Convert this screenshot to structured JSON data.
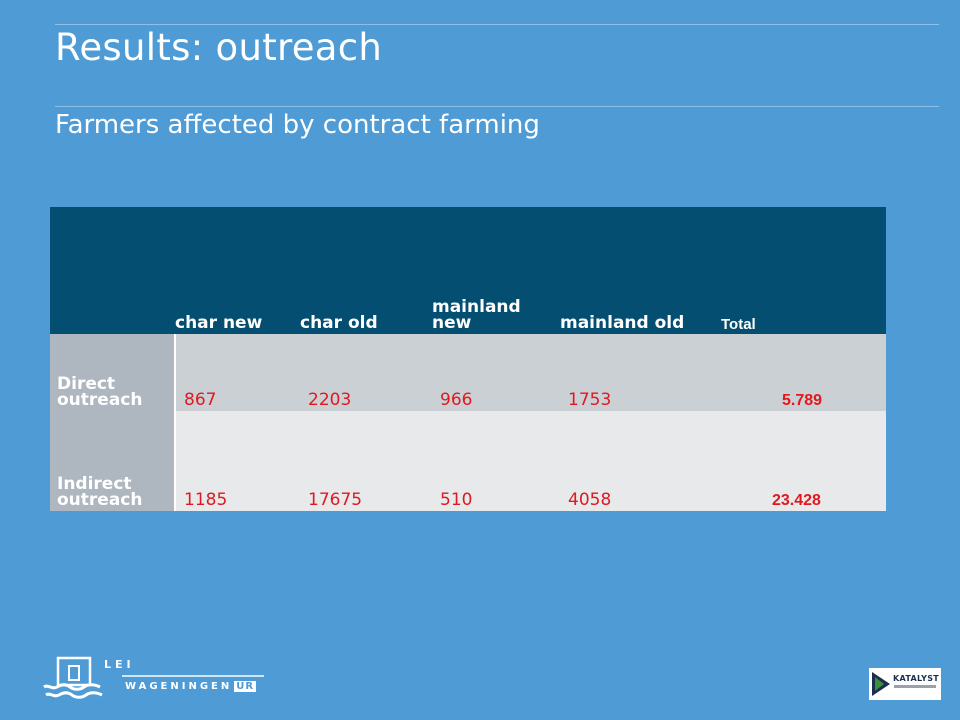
{
  "slide": {
    "title": "Results: outreach",
    "subtitle": "Farmers affected by contract farming"
  },
  "table": {
    "headers": [
      "",
      "char new",
      "char old",
      "mainland new",
      "mainland old",
      "Total"
    ],
    "rows": [
      {
        "label": "Direct outreach",
        "values": [
          "867",
          "2203",
          "966",
          "1753"
        ],
        "total": "5.789"
      },
      {
        "label": "Indirect outreach",
        "values": [
          "1185",
          "17675",
          "510",
          "4058"
        ],
        "total": "23.428"
      }
    ]
  },
  "footer": {
    "lei_label": "LEI",
    "wur_label": "WAGENINGEN",
    "wur_suffix": "UR",
    "sponsor_label": "KATALYST"
  },
  "colors": {
    "background": "#4f9bd5",
    "header_fill": "#034e71",
    "value_text": "#e0191f"
  }
}
